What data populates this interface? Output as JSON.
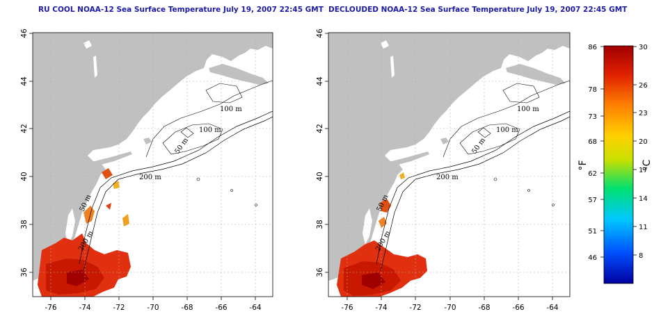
{
  "panels": [
    {
      "title": "RU COOL NOAA-12 Sea Surface Temperature July 19, 2007 22:45 GMT",
      "contour_labels": [
        "100 m",
        "100 m",
        "50 m",
        "200 m",
        "50 m",
        "200 m"
      ]
    },
    {
      "title": "DECLOUDED NOAA-12 Sea Surface Temperature July 19, 2007 22:45 GMT",
      "contour_labels": [
        "100 m",
        "100 m",
        "50 m",
        "200 m",
        "50 m",
        "200 m"
      ]
    }
  ],
  "axes": {
    "x_ticks": [
      "-76",
      "-74",
      "-72",
      "-70",
      "-68",
      "-66",
      "-64"
    ],
    "y_ticks": [
      "46",
      "44",
      "42",
      "40",
      "38",
      "36"
    ]
  },
  "colorbar": {
    "fahrenheit_ticks": [
      "86",
      "78",
      "73",
      "68",
      "62",
      "57",
      "51",
      "46"
    ],
    "celsius_ticks": [
      "30",
      "26",
      "23",
      "20",
      "17",
      "14",
      "11",
      "8"
    ],
    "unit_f": "°F",
    "unit_c": "°C",
    "colors": [
      "#0000a0",
      "#0050ff",
      "#00c8ff",
      "#00e070",
      "#c8e000",
      "#ffd000",
      "#ff8000",
      "#e02000",
      "#a00000"
    ]
  },
  "colors": {
    "land": "#c0c0c0",
    "ocean": "#ffffff",
    "title": "#1a1aa6"
  }
}
